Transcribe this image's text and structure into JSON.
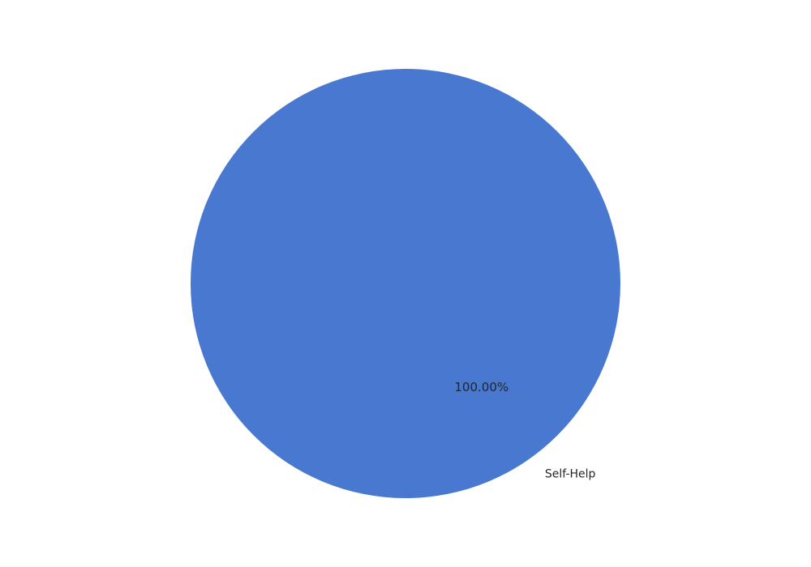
{
  "chart_data": {
    "type": "pie",
    "title": "",
    "categories": [
      "Self-Help"
    ],
    "values": [
      100
    ],
    "percent_labels": [
      "100.00%"
    ],
    "colors": [
      "#4878cf"
    ],
    "legend": "none"
  }
}
